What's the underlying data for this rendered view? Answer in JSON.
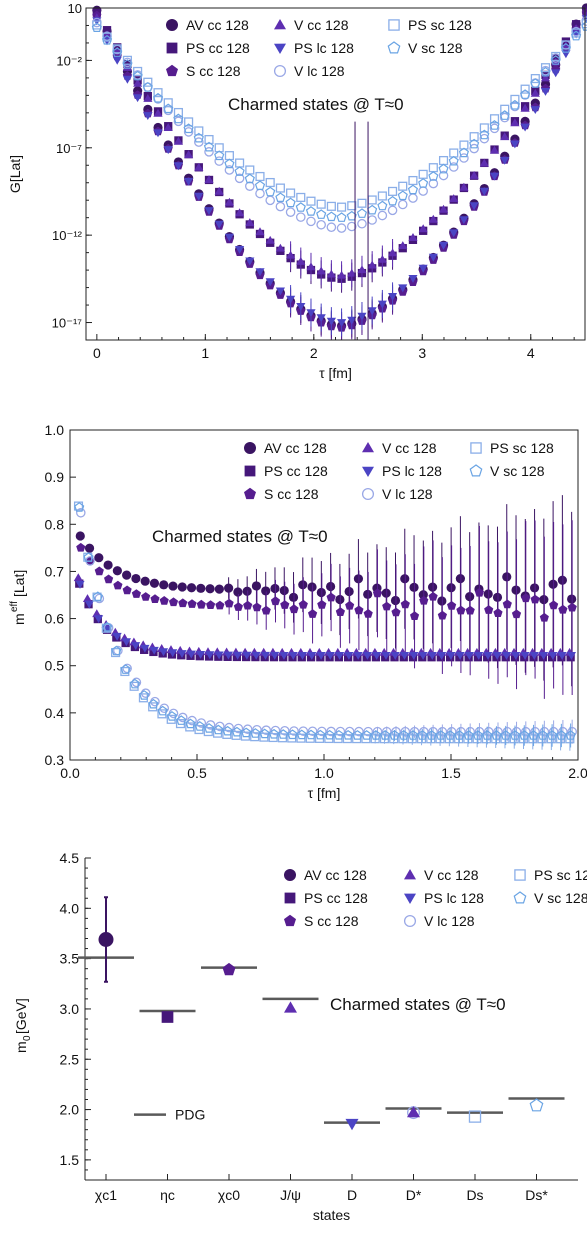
{
  "legend_entries": [
    "AV cc 128",
    "PS cc 128",
    "S cc 128",
    "V cc 128",
    "PS lc 128",
    "V lc 128",
    "PS sc 128",
    "V sc 128"
  ],
  "colors": {
    "AV cc 128": "#3a1462",
    "PS cc 128": "#45177a",
    "S cc 128": "#561d8f",
    "V cc 128": "#5e2eb0",
    "PS lc 128": "#4b44c4",
    "V lc 128": "#9aa8e6",
    "PS sc 128": "#8aaee8",
    "V sc 128": "#6aa4e4",
    "PDG": "#5a5a5a"
  },
  "chart_data": [
    {
      "type": "scatter",
      "annotation": "Charmed states @ T≈0",
      "xlabel": "τ [fm]",
      "ylabel": "G[Lat]",
      "xlim": [
        -0.1,
        4.5
      ],
      "ylim": [
        1e-18,
        10
      ],
      "log_y": true,
      "x_ticks": [
        "0",
        "1",
        "2",
        "3",
        "4"
      ],
      "y_ticks": [
        "10",
        "10⁻²",
        "10⁻⁷",
        "10⁻¹²",
        "10⁻¹⁷"
      ],
      "legend_placement": "top-right",
      "minimum_x": 2.24,
      "series": [
        {
          "name": "AV cc 128",
          "log10_min": -17.2
        },
        {
          "name": "PS cc 128",
          "log10_min": -14.5
        },
        {
          "name": "S cc 128",
          "log10_min": -17.3
        },
        {
          "name": "V cc 128",
          "log10_min": -14.3
        },
        {
          "name": "PS lc 128",
          "log10_min": -17.0
        },
        {
          "name": "V lc 128",
          "log10_min": -11.6
        },
        {
          "name": "PS sc 128",
          "log10_min": -10.4
        },
        {
          "name": "V sc 128",
          "log10_min": -11.0
        }
      ]
    },
    {
      "type": "scatter",
      "annotation": "Charmed states @ T≈0",
      "xlabel": "τ [fm]",
      "ylabel": "m",
      "ylabel_sup": "eff",
      "ylabel_tail": "[Lat]",
      "xlim": [
        0,
        2.0
      ],
      "ylim": [
        0.3,
        1.0
      ],
      "x_ticks": [
        "0.0",
        "0.5",
        "1.0",
        "1.5",
        "2.0"
      ],
      "y_ticks": [
        "0.3",
        "0.4",
        "0.5",
        "0.6",
        "0.7",
        "0.8",
        "0.9",
        "1.0"
      ],
      "legend_placement": "top-right",
      "series": [
        {
          "name": "AV cc 128",
          "plateau": 0.66
        },
        {
          "name": "PS cc 128",
          "plateau": 0.518
        },
        {
          "name": "S cc 128",
          "plateau": 0.625
        },
        {
          "name": "V cc 128",
          "plateau": 0.528
        },
        {
          "name": "PS lc 128",
          "plateau": 0.522
        },
        {
          "name": "V lc 128",
          "plateau": 0.36
        },
        {
          "name": "PS sc 128",
          "plateau": 0.345
        },
        {
          "name": "V sc 128",
          "plateau": 0.352
        }
      ]
    },
    {
      "type": "scatter",
      "annotation": "Charmed states @ T≈0",
      "xlabel": "states",
      "ylabel": "m",
      "ylabel_sub": "0",
      "ylabel_tail": "[GeV]",
      "ylim": [
        1.3,
        4.5
      ],
      "y_ticks": [
        "1.5",
        "2.0",
        "2.5",
        "3.0",
        "3.5",
        "4.0",
        "4.5"
      ],
      "categories": [
        "χc1",
        "ηc",
        "χc0",
        "J/ψ",
        "D",
        "D*",
        "Ds",
        "Ds*"
      ],
      "pdg_label": "PDG",
      "pdg_values": [
        3.51,
        2.98,
        3.41,
        3.1,
        1.87,
        2.01,
        1.97,
        2.11
      ],
      "legend_placement": "top-right",
      "points": [
        {
          "category": "χc1",
          "series": "AV cc 128",
          "value": 3.69,
          "err_low": 3.27,
          "err_high": 4.11
        },
        {
          "category": "ηc",
          "series": "PS cc 128",
          "value": 2.92
        },
        {
          "category": "χc0",
          "series": "S cc 128",
          "value": 3.39
        },
        {
          "category": "J/ψ",
          "series": "V cc 128",
          "value": 3.01
        },
        {
          "category": "D",
          "series": "PS lc 128",
          "value": 1.86
        },
        {
          "category": "D*",
          "series": "V lc 128",
          "value": 1.97
        },
        {
          "category": "D*",
          "series": "V cc 128",
          "value": 1.97
        },
        {
          "category": "Ds",
          "series": "PS sc 128",
          "value": 1.93
        },
        {
          "category": "Ds*",
          "series": "V sc 128",
          "value": 2.04
        }
      ]
    }
  ]
}
